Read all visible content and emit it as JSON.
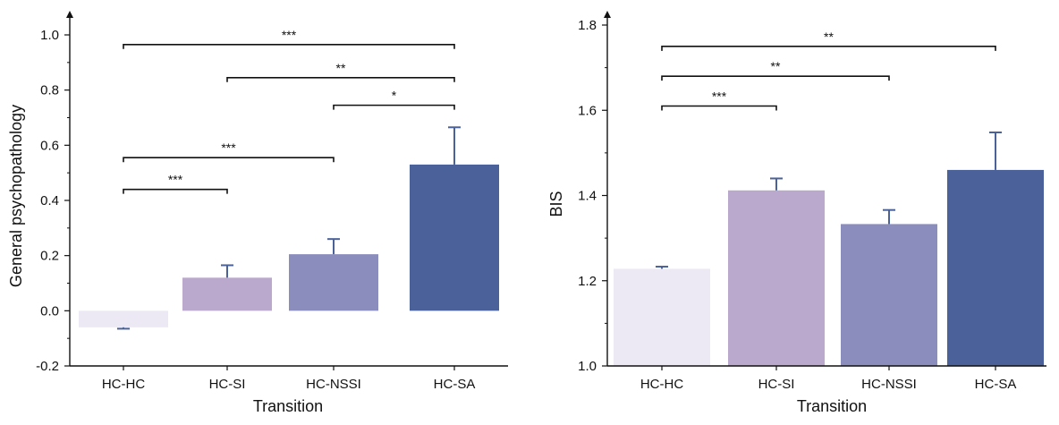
{
  "chart_data": [
    {
      "type": "bar",
      "title": "",
      "xlabel": "Transition",
      "ylabel": "General psychopathology",
      "ylim": [
        -0.2,
        1.1
      ],
      "yticks": [
        -0.2,
        0.0,
        0.2,
        0.4,
        0.6,
        0.8,
        1.0
      ],
      "ytick_labels": [
        "-0.2",
        "0.0",
        "0.2",
        "0.4",
        "0.6",
        "0.8",
        "1.0"
      ],
      "categories": [
        "HC-HC",
        "HC-SI",
        "HC-NSSI",
        "HC-SA"
      ],
      "values": [
        -0.06,
        0.12,
        0.205,
        0.53
      ],
      "errors": [
        0.005,
        0.045,
        0.055,
        0.135
      ],
      "colors": [
        "#ece8f4",
        "#baa9cd",
        "#8b8dbc",
        "#4a6199"
      ],
      "error_color": "#4a6199",
      "significance": [
        {
          "from": 0,
          "to": 3,
          "label": "***",
          "level": 0.965
        },
        {
          "from": 1,
          "to": 3,
          "label": "**",
          "level": 0.845
        },
        {
          "from": 2,
          "to": 3,
          "label": "*",
          "level": 0.745
        },
        {
          "from": 0,
          "to": 2,
          "label": "***",
          "level": 0.555
        },
        {
          "from": 0,
          "to": 1,
          "label": "***",
          "level": 0.44
        }
      ]
    },
    {
      "type": "bar",
      "title": "",
      "xlabel": "Transition",
      "ylabel": "BIS",
      "ylim": [
        1.0,
        1.84
      ],
      "yticks": [
        1.0,
        1.2,
        1.4,
        1.6,
        1.8
      ],
      "ytick_labels": [
        "1.0",
        "1.2",
        "1.4",
        "1.6",
        "1.8"
      ],
      "categories": [
        "HC-HC",
        "HC-SI",
        "HC-NSSI",
        "HC-SA"
      ],
      "values": [
        1.228,
        1.412,
        1.333,
        1.46
      ],
      "errors": [
        0.005,
        0.028,
        0.033,
        0.088
      ],
      "colors": [
        "#ece8f4",
        "#baa9cd",
        "#8b8dbc",
        "#4a6199"
      ],
      "error_color": "#4a6199",
      "significance": [
        {
          "from": 0,
          "to": 3,
          "label": "**",
          "level": 1.75
        },
        {
          "from": 0,
          "to": 2,
          "label": "**",
          "level": 1.68
        },
        {
          "from": 0,
          "to": 1,
          "label": "***",
          "level": 1.61
        }
      ]
    }
  ]
}
